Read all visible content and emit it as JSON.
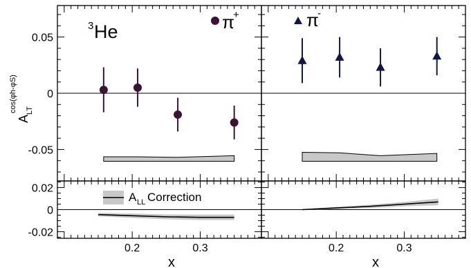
{
  "chart_data": [
    {
      "type": "scatter",
      "panel": "top-left",
      "label": "3He",
      "label_sup": "3",
      "label_main": "He",
      "legend": "π+",
      "legend_main": "π",
      "legend_sup": "+",
      "marker": "circle",
      "color": "#3a1432",
      "ylabel_main": "A",
      "ylabel_sub": "LT",
      "ylabel_sup": "cos(φh-φS)",
      "xlim": [
        0.09,
        0.39
      ],
      "ylim": [
        -0.078,
        0.078
      ],
      "yticks": [
        "0.05",
        "0",
        "-0.05"
      ],
      "ytick_values": [
        0.05,
        0,
        -0.05
      ],
      "series": [
        {
          "name": "π+",
          "x": [
            0.158,
            0.208,
            0.267,
            0.35
          ],
          "y": [
            0.003,
            0.005,
            -0.019,
            -0.026
          ],
          "err": [
            0.02,
            0.017,
            0.015,
            0.015
          ]
        }
      ],
      "systematic_band": {
        "x": [
          0.158,
          0.208,
          0.267,
          0.35
        ],
        "lower": [
          -0.0605,
          -0.0605,
          -0.0605,
          -0.0605
        ],
        "upper": [
          -0.0565,
          -0.0565,
          -0.057,
          -0.0555
        ]
      }
    },
    {
      "type": "scatter",
      "panel": "top-right",
      "legend": "π-",
      "legend_main": "π",
      "legend_sup": "-",
      "marker": "triangle",
      "color": "#0f1745",
      "xlim": [
        0.09,
        0.39
      ],
      "ylim": [
        -0.078,
        0.078
      ],
      "series": [
        {
          "name": "π-",
          "x": [
            0.15,
            0.205,
            0.265,
            0.348
          ],
          "y": [
            0.029,
            0.032,
            0.023,
            0.033
          ],
          "err": [
            0.02,
            0.018,
            0.017,
            0.017
          ]
        }
      ],
      "systematic_band": {
        "x": [
          0.15,
          0.205,
          0.265,
          0.348
        ],
        "lower": [
          -0.0605,
          -0.0605,
          -0.0605,
          -0.0605
        ],
        "upper": [
          -0.0525,
          -0.053,
          -0.0555,
          -0.0535
        ]
      }
    },
    {
      "type": "line",
      "panel": "bottom-left",
      "legend": "ALL Correction",
      "legend_main": "A",
      "legend_sub": "LL",
      "legend_rest": " Correction",
      "xlabel": "x",
      "xticks": [
        "0.2",
        "0.3"
      ],
      "xtick_values": [
        0.2,
        0.3
      ],
      "xlim": [
        0.09,
        0.39
      ],
      "ylim": [
        -0.026,
        0.026
      ],
      "yticks": [
        "0.02",
        "0",
        "-0.02"
      ],
      "ytick_values": [
        0.02,
        0,
        -0.02
      ],
      "series": [
        {
          "name": "ALL Correction",
          "x": [
            0.15,
            0.2,
            0.25,
            0.3,
            0.35
          ],
          "y": [
            -0.0045,
            -0.0055,
            -0.0065,
            -0.007,
            -0.007
          ],
          "band": [
            0.0015,
            0.002,
            0.0022,
            0.0025,
            0.0025
          ]
        }
      ]
    },
    {
      "type": "line",
      "panel": "bottom-right",
      "xlabel": "x",
      "xticks": [
        "0.2",
        "0.3"
      ],
      "xtick_values": [
        0.2,
        0.3
      ],
      "xlim": [
        0.09,
        0.39
      ],
      "ylim": [
        -0.026,
        0.026
      ],
      "series": [
        {
          "x": [
            0.15,
            0.2,
            0.25,
            0.3,
            0.35
          ],
          "y": [
            0.0,
            0.0015,
            0.003,
            0.005,
            0.007
          ],
          "band": [
            0.0005,
            0.001,
            0.0015,
            0.002,
            0.003
          ]
        }
      ]
    }
  ]
}
